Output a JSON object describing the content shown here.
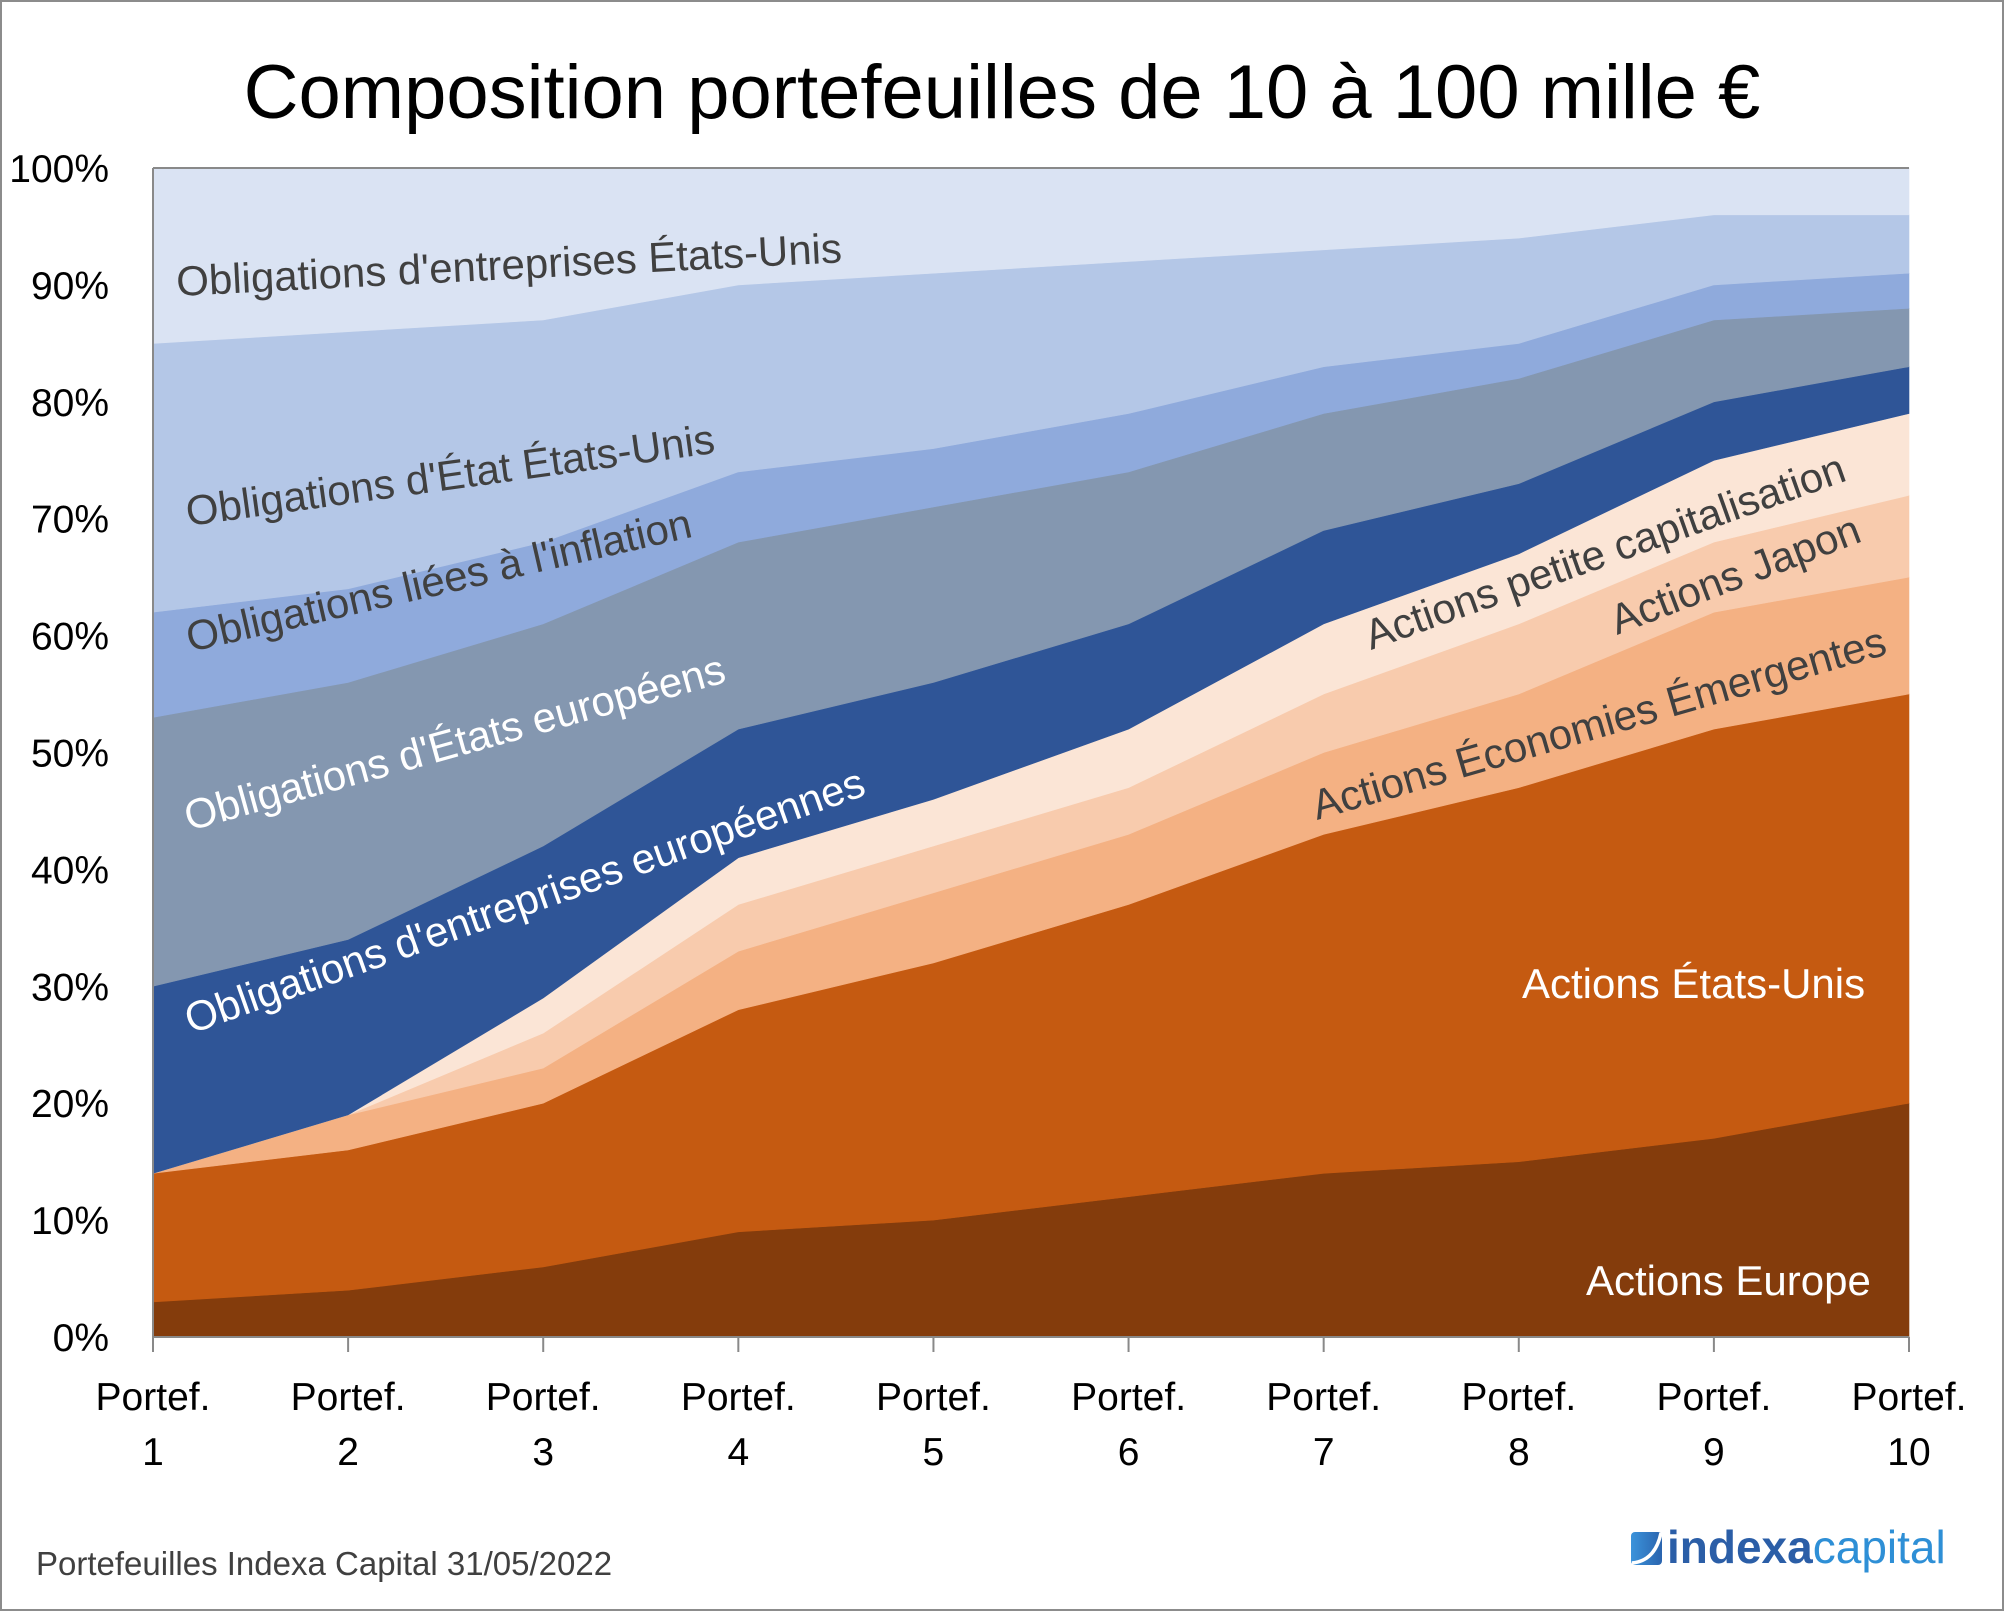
{
  "footer": {
    "note": "Portefeuilles Indexa Capital 31/05/2022"
  },
  "logo": {
    "icon": "indexa-logo-icon",
    "part1": "indexa",
    "part2": "capital",
    "color1": "#2B5EA7",
    "color2": "#2E8FD6"
  },
  "chart_data": {
    "type": "area",
    "stacked": true,
    "title": "Composition portefeuilles de 10 à 100 mille €",
    "xlabel": "",
    "ylabel": "",
    "ylim": [
      0,
      100
    ],
    "y_unit": "%",
    "y_ticks": [
      "0%",
      "10%",
      "20%",
      "30%",
      "40%",
      "50%",
      "60%",
      "70%",
      "80%",
      "90%",
      "100%"
    ],
    "grid": false,
    "legend": "none (inline series labels)",
    "categories": [
      {
        "line1": "Portef.",
        "line2": "1"
      },
      {
        "line1": "Portef.",
        "line2": "2"
      },
      {
        "line1": "Portef.",
        "line2": "3"
      },
      {
        "line1": "Portef.",
        "line2": "4"
      },
      {
        "line1": "Portef.",
        "line2": "5"
      },
      {
        "line1": "Portef.",
        "line2": "6"
      },
      {
        "line1": "Portef.",
        "line2": "7"
      },
      {
        "line1": "Portef.",
        "line2": "8"
      },
      {
        "line1": "Portef.",
        "line2": "9"
      },
      {
        "line1": "Portef.",
        "line2": "10"
      }
    ],
    "series": [
      {
        "name": "Actions Europe",
        "color": "#843C0C",
        "label_color": "#FFFFFF",
        "values": [
          3,
          4,
          6,
          9,
          10,
          12,
          14,
          15,
          17,
          20
        ]
      },
      {
        "name": "Actions États-Unis",
        "color": "#C55A11",
        "label_color": "#FFFFFF",
        "values": [
          11,
          12,
          14,
          19,
          22,
          25,
          29,
          32,
          35,
          35
        ]
      },
      {
        "name": "Actions Économies Émergentes",
        "color": "#F4B183",
        "label_color": "#404040",
        "values": [
          0,
          3,
          3,
          5,
          6,
          6,
          7,
          8,
          10,
          10
        ]
      },
      {
        "name": "Actions Japon",
        "color": "#F8CBAD",
        "label_color": "#404040",
        "values": [
          0,
          0,
          3,
          4,
          4,
          4,
          5,
          6,
          6,
          7
        ]
      },
      {
        "name": "Actions petite capitalisation",
        "color": "#FBE5D6",
        "label_color": "#404040",
        "values": [
          0,
          0,
          3,
          4,
          4,
          5,
          6,
          6,
          7,
          7
        ]
      },
      {
        "name": "Obligations d'entreprises européennes",
        "color": "#2F5597",
        "label_color": "#FFFFFF",
        "values": [
          16,
          15,
          13,
          11,
          10,
          9,
          8,
          6,
          5,
          4
        ]
      },
      {
        "name": "Obligations d'États européens",
        "color": "#8497B0",
        "label_color": "#FFFFFF",
        "values": [
          23,
          22,
          19,
          16,
          15,
          13,
          10,
          9,
          7,
          5
        ]
      },
      {
        "name": "Obligations liées à l'inflation",
        "color": "#8FAADC",
        "label_color": "#404040",
        "values": [
          9,
          8,
          7,
          6,
          5,
          5,
          4,
          3,
          3,
          3
        ]
      },
      {
        "name": "Obligations d'État États-Unis",
        "color": "#B4C7E7",
        "label_color": "#404040",
        "values": [
          23,
          22,
          19,
          16,
          15,
          13,
          10,
          9,
          6,
          5
        ]
      },
      {
        "name": "Obligations d'entreprises États-Unis",
        "color": "#DAE3F3",
        "label_color": "#404040",
        "values": [
          15,
          14,
          13,
          10,
          9,
          8,
          7,
          6,
          4,
          4
        ]
      }
    ]
  }
}
